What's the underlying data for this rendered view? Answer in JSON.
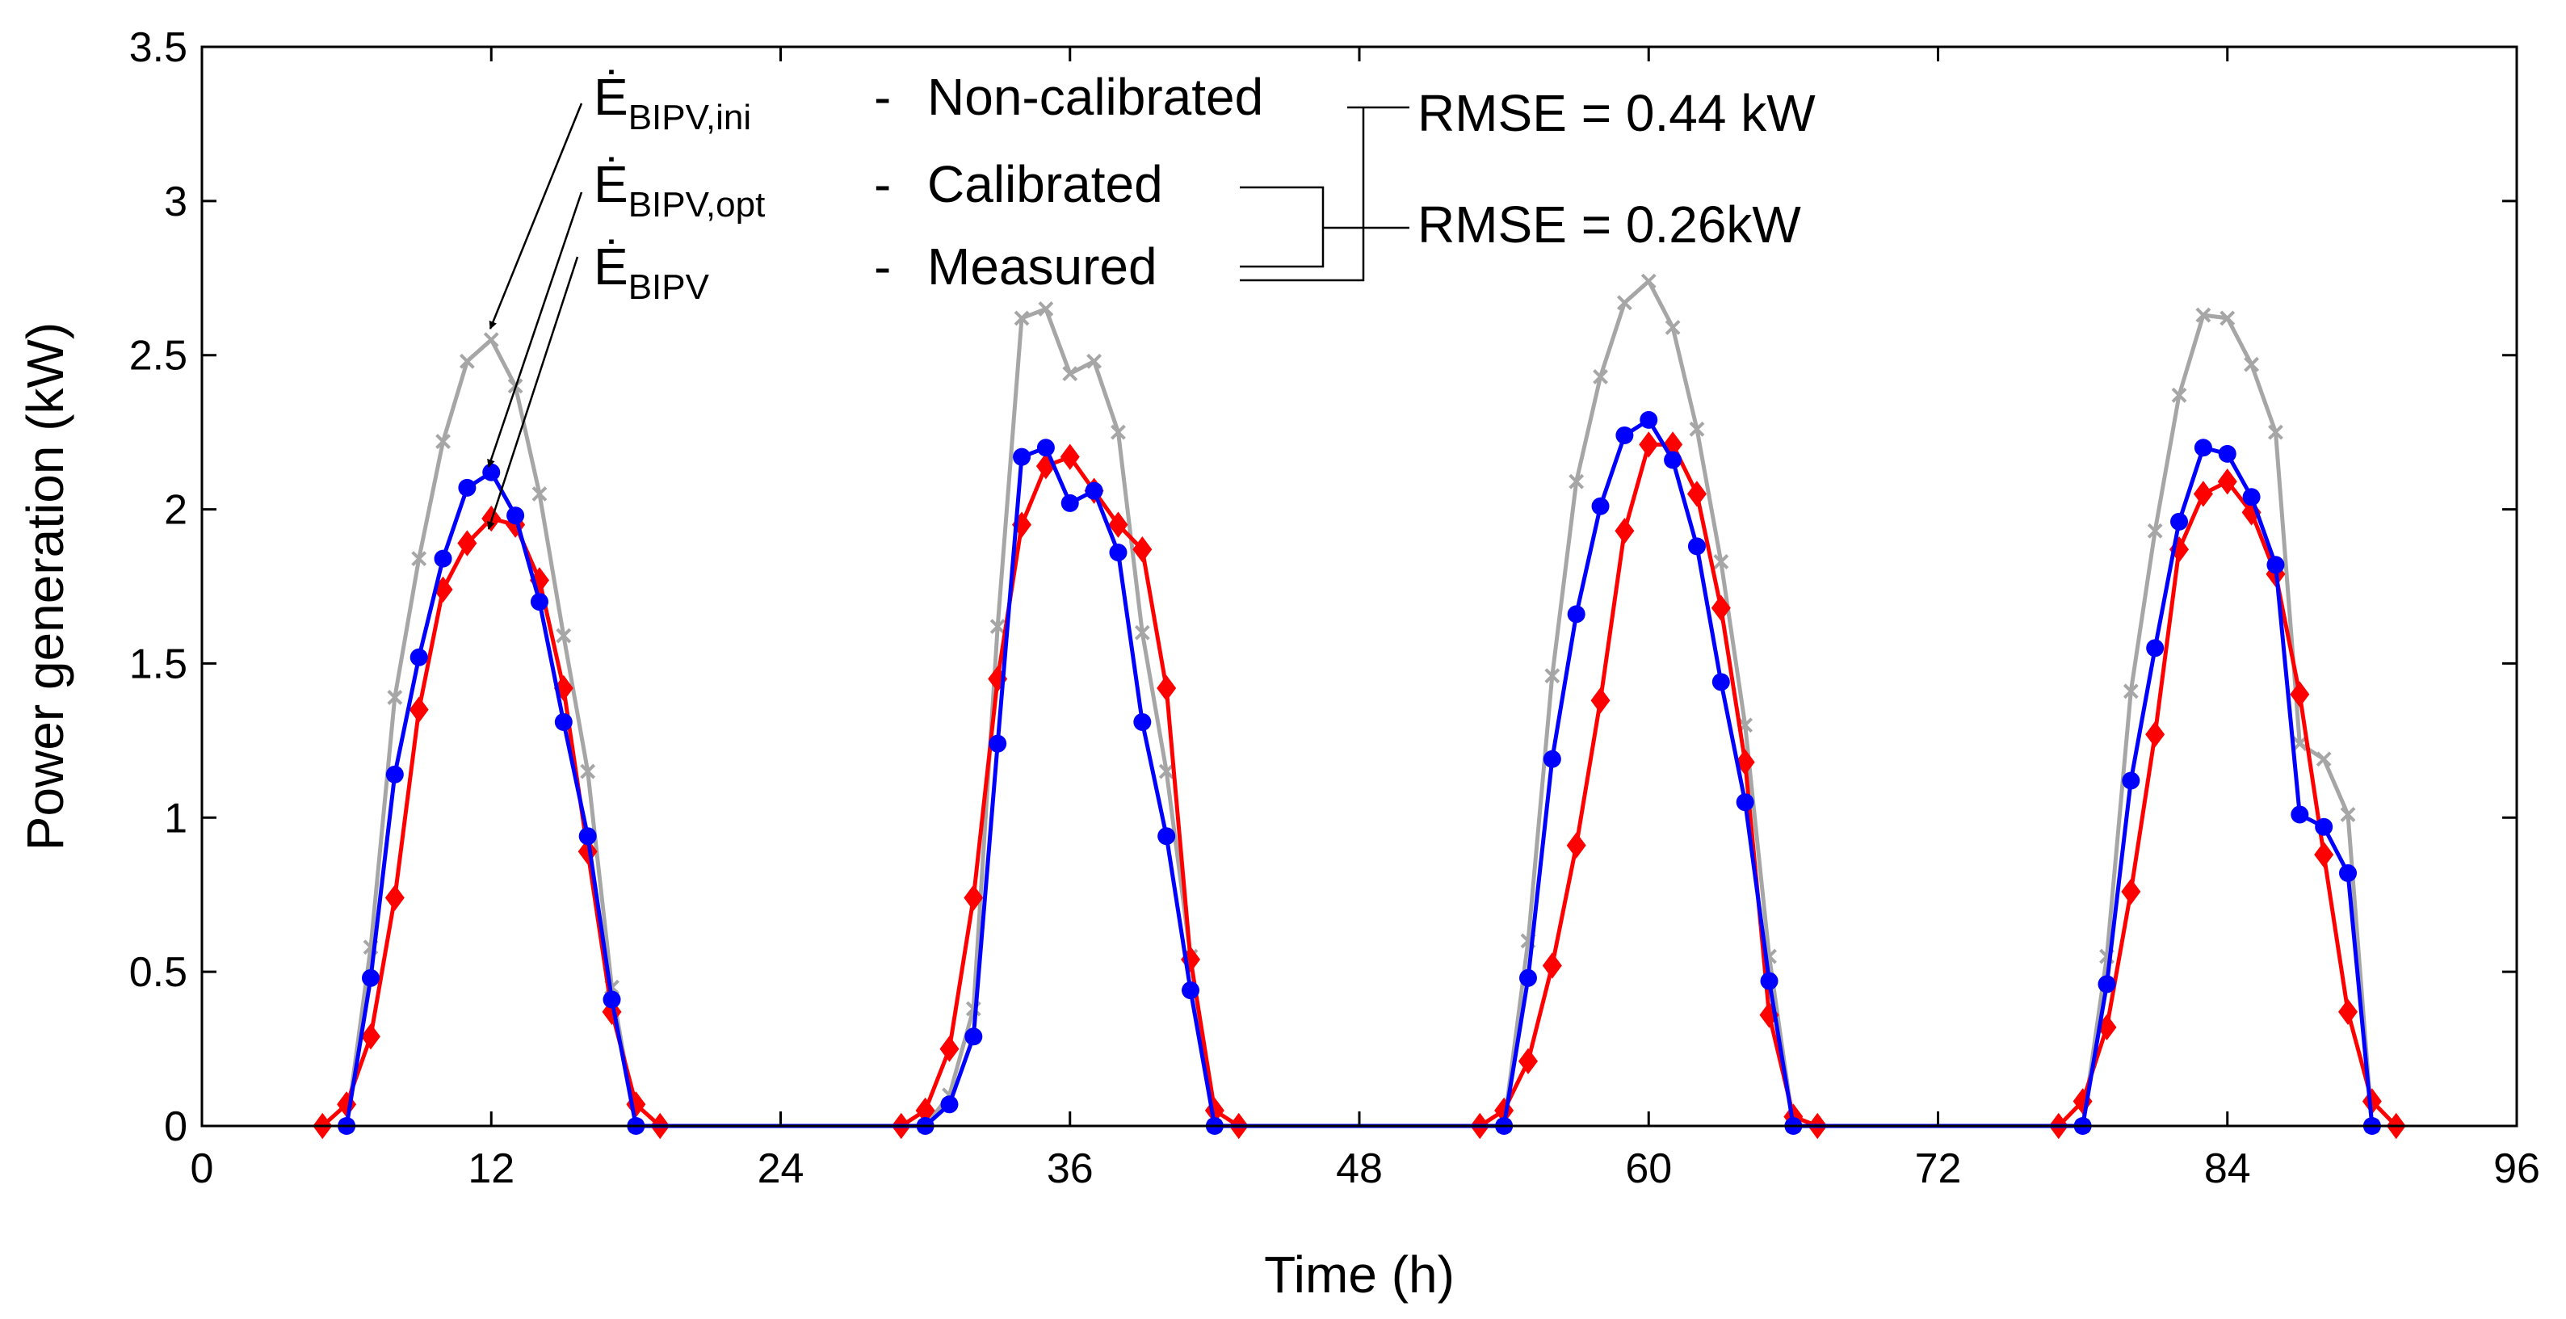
{
  "chart_data": {
    "type": "line",
    "xlabel": "Time (h)",
    "ylabel": "Power generation (kW)",
    "xlim": [
      0,
      96
    ],
    "ylim": [
      0,
      3.5
    ],
    "xticks": [
      0,
      12,
      24,
      36,
      48,
      60,
      72,
      84,
      96
    ],
    "yticks": [
      0,
      0.5,
      1,
      1.5,
      2,
      2.5,
      3,
      3.5
    ],
    "ytick_labels": [
      "0",
      "0.5",
      "1",
      "1.5",
      "2",
      "2.5",
      "3",
      "3.5"
    ],
    "grid": false,
    "series": [
      {
        "name": "Non-calibrated",
        "symbol_main": "Ė",
        "symbol_sub": "BIPV,ini",
        "color": "#a6a6a6",
        "marker": "x",
        "x": [
          6,
          7,
          8,
          9,
          10,
          11,
          12,
          13,
          14,
          15,
          16,
          17,
          18,
          30,
          31,
          32,
          33,
          34,
          35,
          36,
          37,
          38,
          39,
          40,
          41,
          42,
          54,
          55,
          56,
          57,
          58,
          59,
          60,
          61,
          62,
          63,
          64,
          65,
          66,
          78,
          79,
          80,
          81,
          82,
          83,
          84,
          85,
          86,
          87,
          88,
          89,
          90
        ],
        "y": [
          0,
          0.58,
          1.39,
          1.84,
          2.22,
          2.48,
          2.55,
          2.4,
          2.05,
          1.59,
          1.15,
          0.45,
          0,
          0,
          0.1,
          0.38,
          1.62,
          2.62,
          2.65,
          2.44,
          2.48,
          2.25,
          1.6,
          1.15,
          0.55,
          0,
          0,
          0.6,
          1.46,
          2.09,
          2.43,
          2.67,
          2.74,
          2.59,
          2.26,
          1.83,
          1.3,
          0.55,
          0,
          0,
          0.55,
          1.41,
          1.93,
          2.37,
          2.63,
          2.62,
          2.47,
          2.25,
          1.24,
          1.19,
          1.01,
          0
        ]
      },
      {
        "name": "Calibrated",
        "symbol_main": "Ė",
        "symbol_sub": "BIPV,opt",
        "color": "#0000ff",
        "marker": "o",
        "x": [
          6,
          7,
          8,
          9,
          10,
          11,
          12,
          13,
          14,
          15,
          16,
          17,
          18,
          30,
          31,
          32,
          33,
          34,
          35,
          36,
          37,
          38,
          39,
          40,
          41,
          42,
          54,
          55,
          56,
          57,
          58,
          59,
          60,
          61,
          62,
          63,
          64,
          65,
          66,
          78,
          79,
          80,
          81,
          82,
          83,
          84,
          85,
          86,
          87,
          88,
          89,
          90
        ],
        "y": [
          0,
          0.48,
          1.14,
          1.52,
          1.84,
          2.07,
          2.12,
          1.98,
          1.7,
          1.31,
          0.94,
          0.41,
          0,
          0,
          0.07,
          0.29,
          1.24,
          2.17,
          2.2,
          2.02,
          2.06,
          1.86,
          1.31,
          0.94,
          0.44,
          0,
          0,
          0.48,
          1.19,
          1.66,
          2.01,
          2.24,
          2.29,
          2.16,
          1.88,
          1.44,
          1.05,
          0.47,
          0,
          0,
          0.46,
          1.12,
          1.55,
          1.96,
          2.2,
          2.18,
          2.04,
          1.82,
          1.01,
          0.97,
          0.82,
          0
        ]
      },
      {
        "name": "Measured",
        "symbol_main": "Ė",
        "symbol_sub": "BIPV",
        "color": "#ff0000",
        "marker": "d",
        "x": [
          5,
          6,
          7,
          8,
          9,
          10,
          11,
          12,
          13,
          14,
          15,
          16,
          17,
          18,
          19,
          29,
          30,
          31,
          32,
          33,
          34,
          35,
          36,
          37,
          38,
          39,
          40,
          41,
          42,
          43,
          53,
          54,
          55,
          56,
          57,
          58,
          59,
          60,
          61,
          62,
          63,
          64,
          65,
          66,
          67,
          77,
          78,
          79,
          80,
          81,
          82,
          83,
          84,
          85,
          86,
          87,
          88,
          89,
          90,
          91
        ],
        "y": [
          0,
          0.07,
          0.29,
          0.74,
          1.35,
          1.74,
          1.89,
          1.97,
          1.95,
          1.77,
          1.42,
          0.89,
          0.37,
          0.07,
          0,
          0,
          0.05,
          0.25,
          0.74,
          1.45,
          1.95,
          2.14,
          2.17,
          2.06,
          1.95,
          1.87,
          1.42,
          0.54,
          0.05,
          0,
          0,
          0.05,
          0.21,
          0.52,
          0.91,
          1.38,
          1.93,
          2.21,
          2.21,
          2.05,
          1.68,
          1.18,
          0.36,
          0.03,
          0,
          0,
          0.08,
          0.32,
          0.76,
          1.27,
          1.87,
          2.05,
          2.09,
          1.99,
          1.79,
          1.4,
          0.88,
          0.37,
          0.08,
          0
        ]
      }
    ],
    "annotations": {
      "dash": "-",
      "rmse_non_calibrated": "RMSE = 0.44 kW",
      "rmse_calibrated": "RMSE = 0.26kW"
    }
  }
}
